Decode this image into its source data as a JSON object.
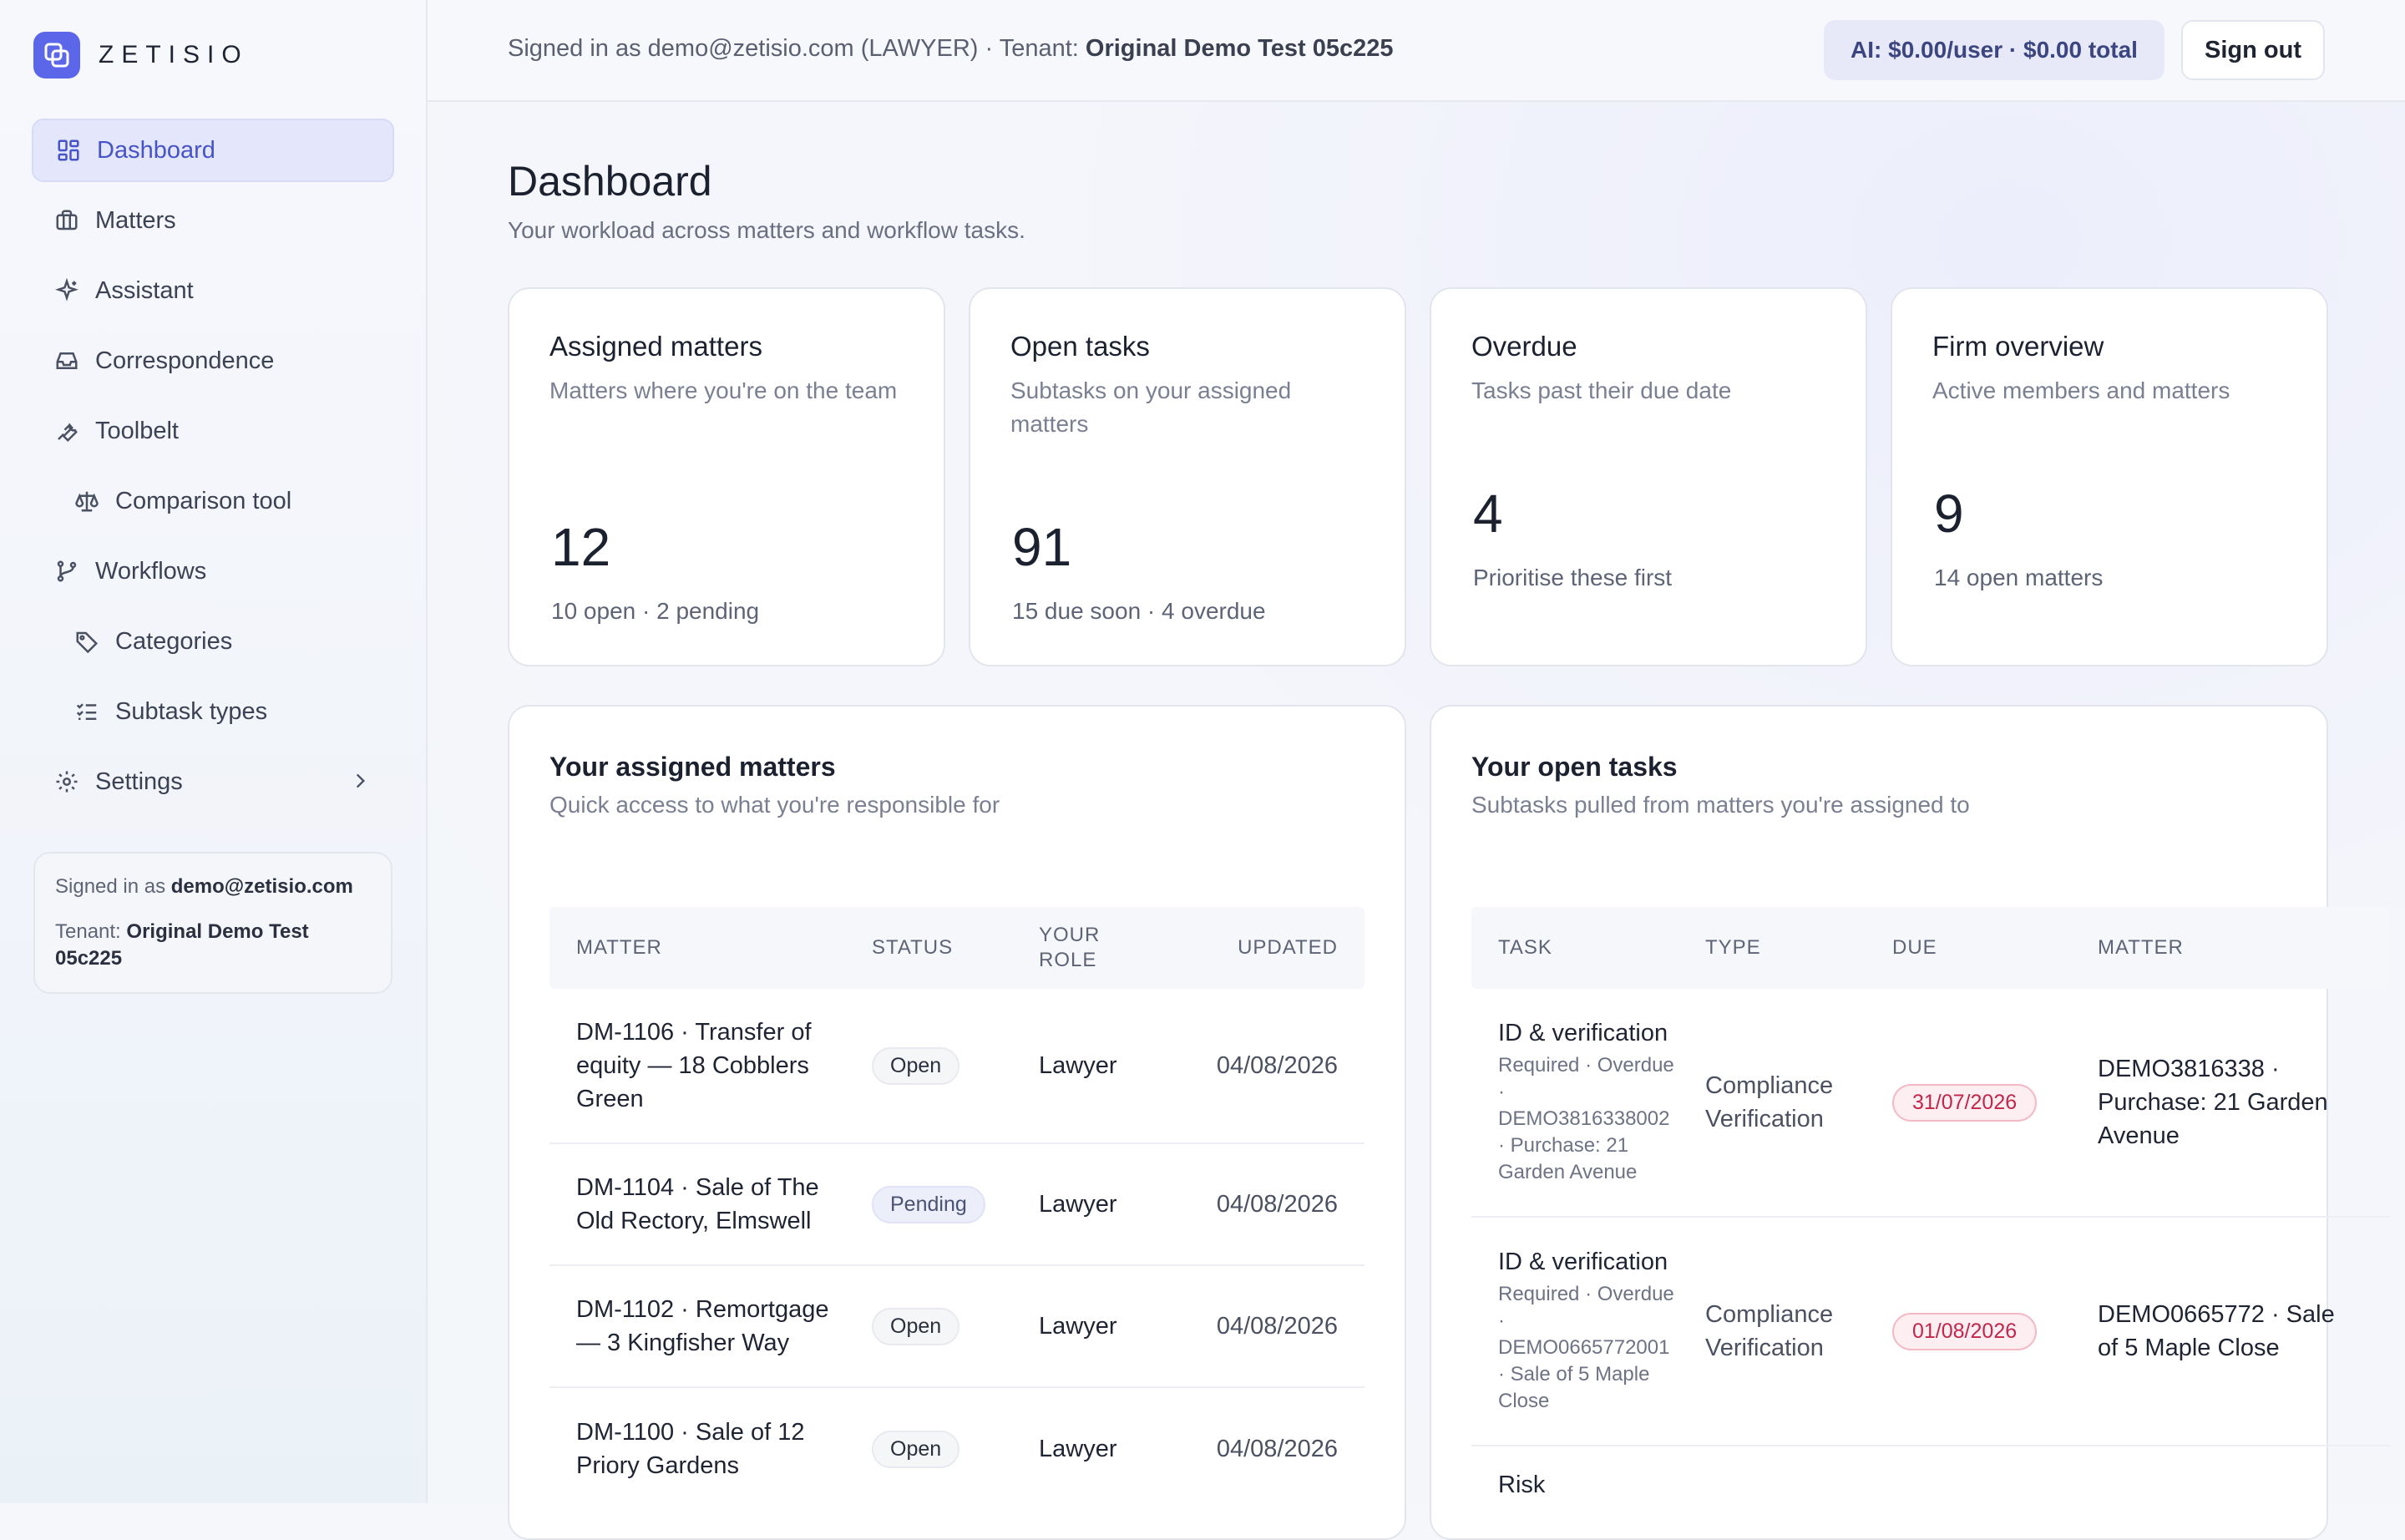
{
  "brand": {
    "name": "ZETISIO"
  },
  "sidebar": {
    "items": [
      {
        "label": "Dashboard"
      },
      {
        "label": "Matters"
      },
      {
        "label": "Assistant"
      },
      {
        "label": "Correspondence"
      },
      {
        "label": "Toolbelt"
      },
      {
        "label": "Comparison tool"
      },
      {
        "label": "Workflows"
      },
      {
        "label": "Categories"
      },
      {
        "label": "Subtask types"
      },
      {
        "label": "Settings"
      }
    ],
    "signed_in_prefix": "Signed in as",
    "signed_in_email": "demo@zetisio.com",
    "tenant_prefix": "Tenant:",
    "tenant_name": "Original Demo Test 05c225"
  },
  "topbar": {
    "signed_in_text": "Signed in as demo@zetisio.com (LAWYER) · Tenant:",
    "tenant_name": "Original Demo Test 05c225",
    "ai_badge": "AI: $0.00/user · $0.00 total",
    "sign_out": "Sign out"
  },
  "page": {
    "title": "Dashboard",
    "subtitle": "Your workload across matters and workflow tasks."
  },
  "stats": [
    {
      "title": "Assigned matters",
      "desc": "Matters where you're on the team",
      "value": "12",
      "foot": "10 open · 2 pending"
    },
    {
      "title": "Open tasks",
      "desc": "Subtasks on your assigned matters",
      "value": "91",
      "foot": "15 due soon · 4 overdue"
    },
    {
      "title": "Overdue",
      "desc": "Tasks past their due date",
      "value": "4",
      "foot": "Prioritise these first"
    },
    {
      "title": "Firm overview",
      "desc": "Active members and matters",
      "value": "9",
      "foot": "14 open matters"
    }
  ],
  "matters_panel": {
    "title": "Your assigned matters",
    "subtitle": "Quick access to what you're responsible for",
    "headers": [
      "MATTER",
      "STATUS",
      "YOUR ROLE",
      "UPDATED"
    ],
    "rows": [
      {
        "matter": "DM-1106 · Transfer of equity — 18 Cobblers Green",
        "status": "Open",
        "role": "Lawyer",
        "updated": "04/08/2026"
      },
      {
        "matter": "DM-1104 · Sale of The Old Rectory, Elmswell",
        "status": "Pending",
        "role": "Lawyer",
        "updated": "04/08/2026"
      },
      {
        "matter": "DM-1102 · Remortgage — 3 Kingfisher Way",
        "status": "Open",
        "role": "Lawyer",
        "updated": "04/08/2026"
      },
      {
        "matter": "DM-1100 · Sale of 12 Priory Gardens",
        "status": "Open",
        "role": "Lawyer",
        "updated": "04/08/2026"
      }
    ]
  },
  "tasks_panel": {
    "title": "Your open tasks",
    "subtitle": "Subtasks pulled from matters you're assigned to",
    "headers": [
      "TASK",
      "TYPE",
      "DUE",
      "MATTER"
    ],
    "rows": [
      {
        "task": "ID & verification",
        "meta1": "Required · Overdue",
        "meta2": "·",
        "meta3": "DEMO3816338002",
        "meta4": "· Purchase: 21",
        "meta5": "Garden Avenue",
        "type": "Compliance Verification",
        "due": "31/07/2026",
        "matter": "DEMO3816338 · Purchase: 21 Garden Avenue"
      },
      {
        "task": "ID & verification",
        "meta1": "Required · Overdue",
        "meta2": "·",
        "meta3": "DEMO0665772001",
        "meta4": "· Sale of 5 Maple",
        "meta5": "Close",
        "type": "Compliance Verification",
        "due": "01/08/2026",
        "matter": "DEMO0665772 · Sale of 5 Maple Close"
      },
      {
        "task": "Risk"
      }
    ]
  },
  "colors": {
    "accent": "#5b67e8",
    "active_nav_bg": "#e4e7fb",
    "overdue_red": "#c2264a"
  }
}
